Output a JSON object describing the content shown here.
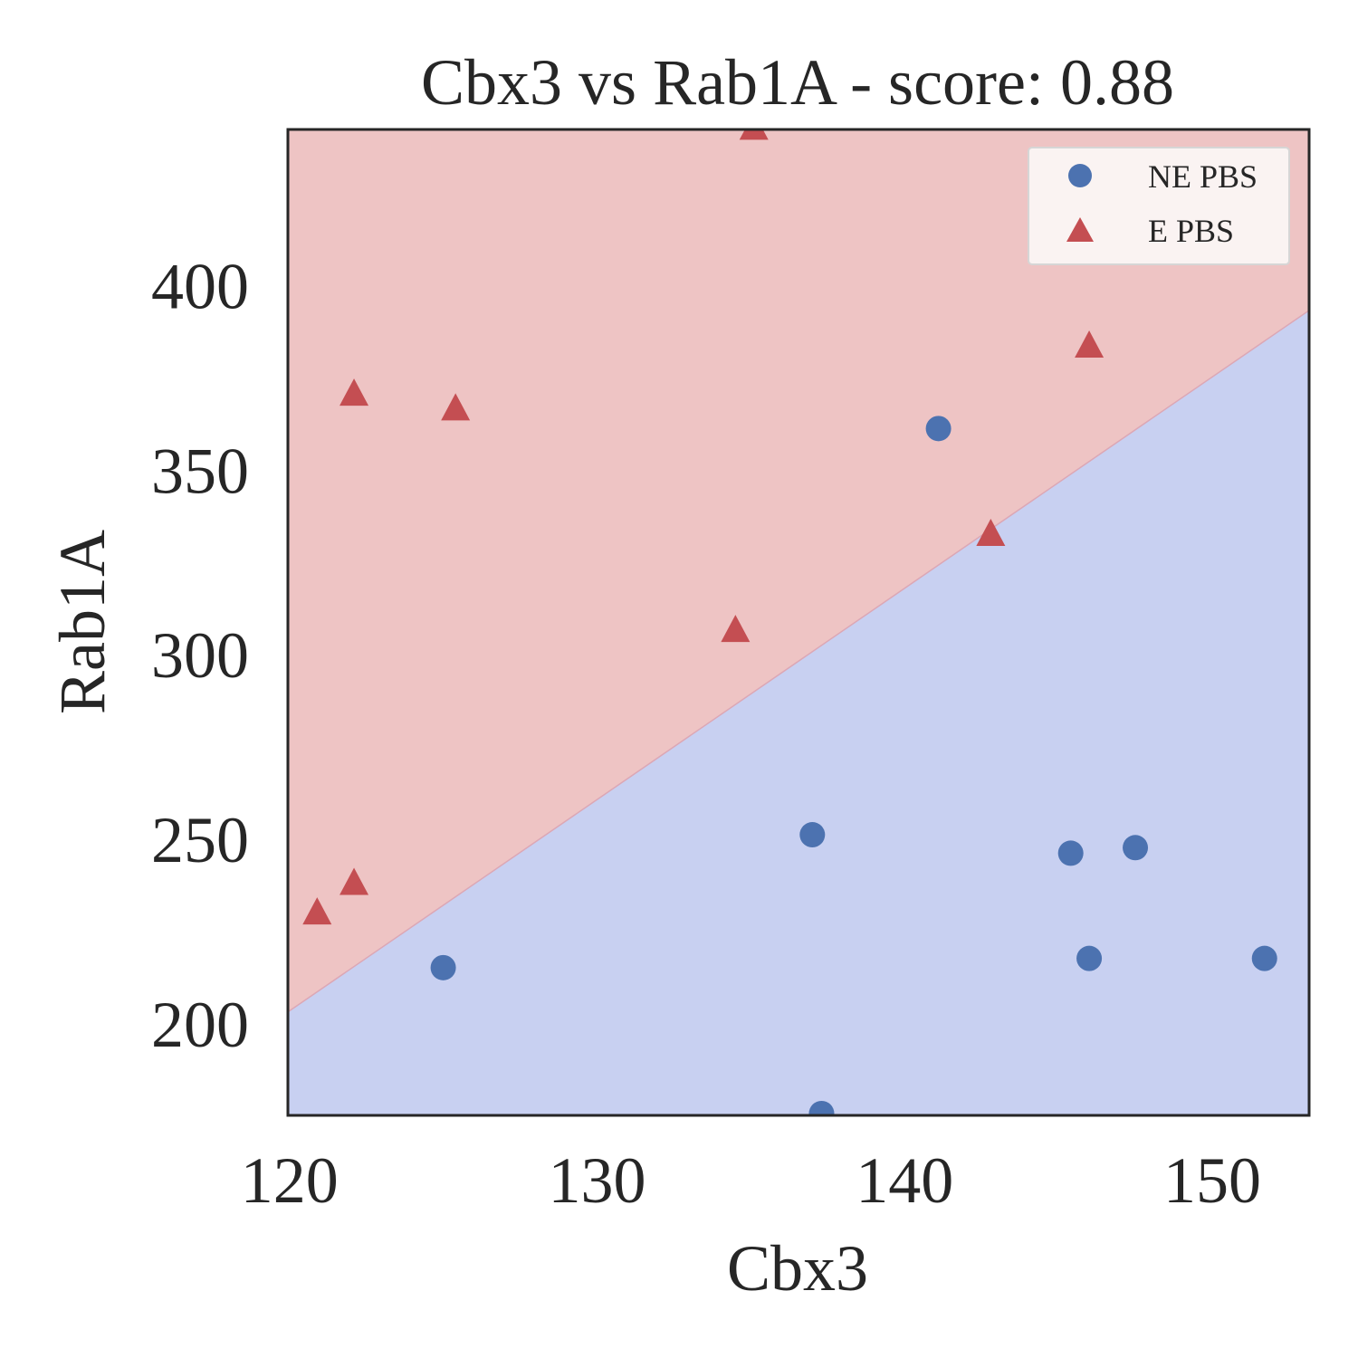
{
  "chart_data": {
    "type": "scatter",
    "title": "Cbx3 vs Rab1A - score: 0.88",
    "xlabel": "Cbx3",
    "ylabel": "Rab1A",
    "xlim": [
      119.95,
      153.15
    ],
    "ylim": [
      175.5,
      442.5
    ],
    "xticks": [
      120,
      130,
      140,
      150
    ],
    "yticks": [
      200,
      250,
      300,
      350,
      400
    ],
    "grid": false,
    "legend_position": "top-right",
    "decision_boundary": {
      "line": [
        [
          119.95,
          203.5
        ],
        [
          153.15,
          393.5
        ]
      ],
      "region_above": "E PBS",
      "region_below": "NE PBS",
      "region_above_color": "#eec4c4",
      "region_below_color": "#c8d0f1"
    },
    "series": [
      {
        "name": "NE PBS",
        "marker": "circle",
        "color": "#4c72b0",
        "points": [
          [
            125.0,
            215.5
          ],
          [
            137.0,
            251.5
          ],
          [
            137.3,
            176.0
          ],
          [
            141.1,
            361.5
          ],
          [
            145.4,
            246.5
          ],
          [
            146.0,
            218.0
          ],
          [
            147.5,
            248.0
          ],
          [
            151.7,
            218.0
          ]
        ]
      },
      {
        "name": "E PBS",
        "marker": "triangle",
        "color": "#c44e52",
        "points": [
          [
            120.9,
            230.0
          ],
          [
            122.1,
            238.0
          ],
          [
            122.1,
            370.5
          ],
          [
            125.4,
            366.5
          ],
          [
            134.5,
            306.5
          ],
          [
            135.1,
            442.5
          ],
          [
            142.8,
            332.5
          ],
          [
            146.0,
            383.5
          ]
        ]
      }
    ]
  }
}
